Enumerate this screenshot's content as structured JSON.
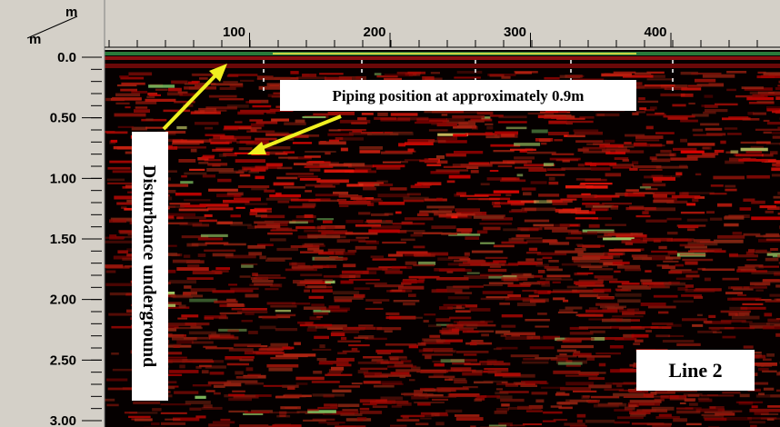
{
  "axes": {
    "x_unit": "m",
    "y_unit": "m",
    "x_ticks": [
      100,
      200,
      300,
      400
    ],
    "y_ticks": [
      "0.0",
      "0.50",
      "1.00",
      "1.50",
      "2.00",
      "2.50",
      "3.00"
    ]
  },
  "annotations": {
    "piping": "Piping position at approximately 0.9m",
    "disturbance": "Disturbance underground",
    "line": "Line 2"
  }
}
